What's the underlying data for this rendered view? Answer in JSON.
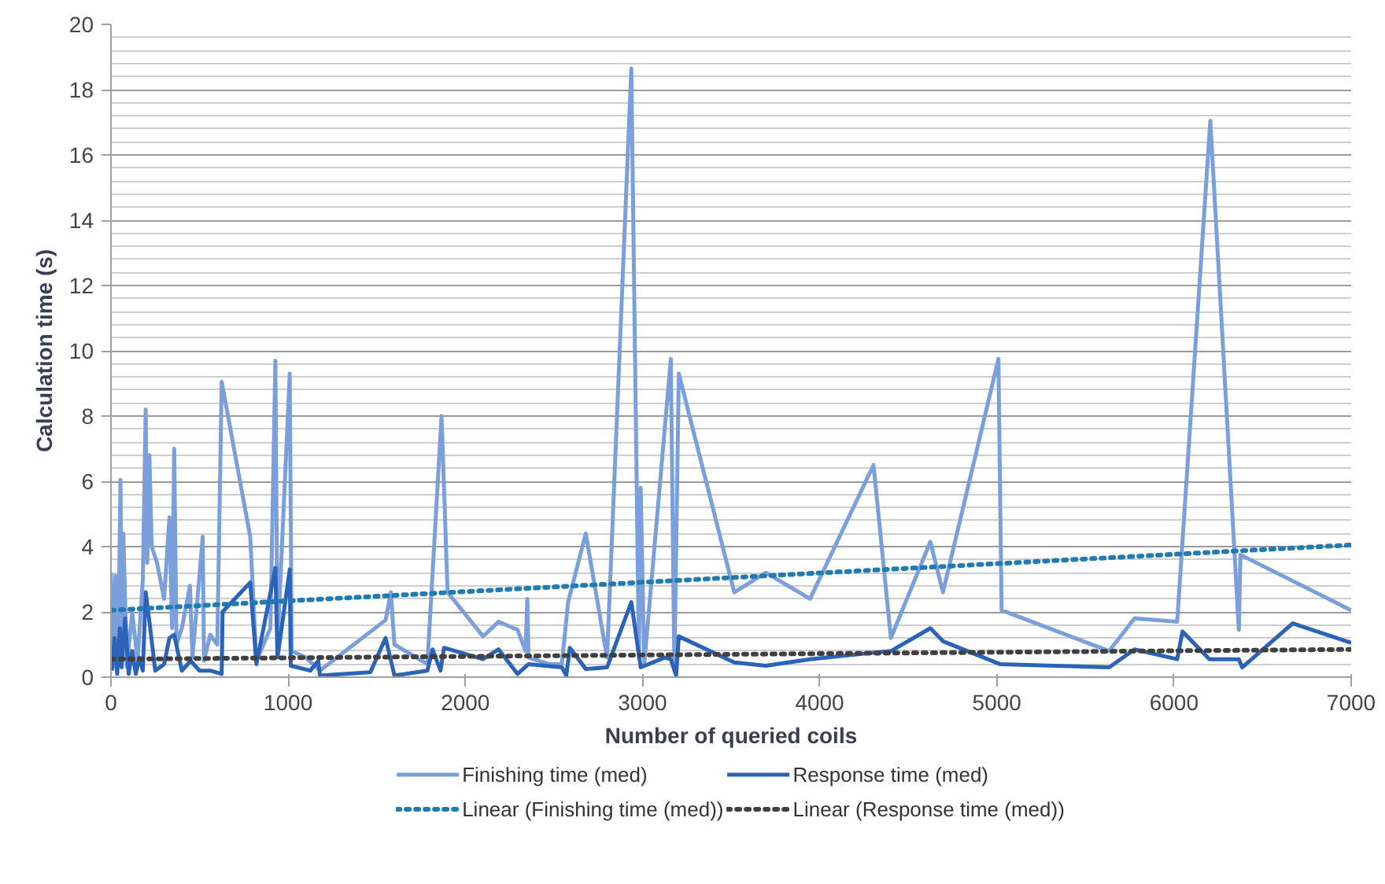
{
  "chart_data": {
    "type": "line",
    "xlabel": "Number of queried coils",
    "ylabel": "Calculation time (s)",
    "xlim": [
      0,
      7000
    ],
    "xticks": [
      0,
      1000,
      2000,
      3000,
      4000,
      5000,
      6000,
      7000
    ],
    "ylim": [
      0,
      20
    ],
    "yticks": [
      0,
      2,
      4,
      6,
      8,
      10,
      12,
      14,
      16,
      18,
      20
    ],
    "grid": "y",
    "legend": "bottom",
    "line_style": "solid",
    "marker": "none",
    "series": [
      {
        "name": "Finishing time (med)",
        "color": "#7b9fdb",
        "x": [
          0,
          10,
          25,
          40,
          54,
          60,
          70,
          90,
          120,
          150,
          180,
          196,
          205,
          217,
          230,
          260,
          300,
          330,
          345,
          357,
          370,
          400,
          446,
          460,
          518,
          525,
          560,
          600,
          625,
          786,
          821,
          900,
          928,
          940,
          1009,
          1020,
          1100,
          1179,
          1550,
          1580,
          1600,
          1786,
          1866,
          1900,
          2100,
          2188,
          2295,
          2340,
          2350,
          2357,
          2473,
          2545,
          2580,
          2680,
          2800,
          2937,
          2980,
          2990,
          3010,
          3160,
          3180,
          3205,
          3518,
          3696,
          3946,
          4304,
          4402,
          4625,
          4696,
          5009,
          5027,
          5634,
          5777,
          6018,
          6205,
          6366,
          6375,
          7000
        ],
        "values": [
          3.2,
          0.3,
          3.1,
          0.5,
          6.05,
          1.0,
          4.4,
          0.3,
          2.0,
          0.5,
          3.0,
          8.2,
          3.5,
          6.8,
          4.0,
          3.5,
          2.4,
          4.9,
          1.5,
          7.0,
          1.0,
          1.5,
          2.8,
          0.6,
          4.3,
          0.5,
          1.3,
          1.0,
          9.05,
          4.3,
          0.5,
          1.5,
          9.7,
          1.0,
          9.3,
          0.8,
          0.6,
          0.2,
          1.75,
          2.6,
          1.0,
          0.4,
          8.0,
          2.6,
          1.25,
          1.7,
          1.45,
          0.8,
          2.4,
          0.6,
          0.4,
          0.4,
          2.3,
          4.4,
          0.6,
          18.65,
          0.6,
          5.8,
          0.4,
          9.75,
          0.2,
          9.3,
          2.6,
          3.2,
          2.4,
          6.5,
          1.2,
          4.15,
          2.6,
          9.75,
          2.05,
          0.8,
          1.8,
          1.7,
          17.05,
          1.45,
          3.75,
          2.05
        ]
      },
      {
        "name": "Response time (med)",
        "color": "#2a63b8",
        "x": [
          5,
          20,
          35,
          50,
          60,
          80,
          100,
          120,
          140,
          160,
          180,
          196,
          217,
          250,
          300,
          330,
          357,
          400,
          450,
          500,
          560,
          625,
          630,
          786,
          821,
          928,
          940,
          1009,
          1015,
          1125,
          1170,
          1180,
          1464,
          1550,
          1600,
          1786,
          1815,
          1860,
          1880,
          2100,
          2188,
          2295,
          2357,
          2545,
          2570,
          2590,
          2680,
          2800,
          2937,
          2990,
          3125,
          3160,
          3190,
          3205,
          3518,
          3696,
          3946,
          4304,
          4402,
          4625,
          4696,
          5018,
          5634,
          5777,
          6018,
          6048,
          6200,
          6366,
          6385,
          6670,
          7000
        ],
        "values": [
          0.2,
          1.2,
          0.1,
          1.5,
          0.3,
          1.8,
          0.1,
          0.8,
          0.1,
          0.6,
          0.2,
          2.6,
          1.7,
          0.2,
          0.4,
          1.2,
          1.3,
          0.2,
          0.5,
          0.2,
          0.2,
          0.1,
          2.0,
          2.9,
          0.4,
          3.35,
          0.6,
          3.3,
          0.35,
          0.2,
          0.5,
          0.05,
          0.15,
          1.2,
          0.05,
          0.2,
          0.85,
          0.2,
          0.9,
          0.55,
          0.85,
          0.1,
          0.4,
          0.3,
          0.05,
          0.9,
          0.25,
          0.3,
          2.3,
          0.3,
          0.6,
          0.55,
          0.05,
          1.25,
          0.45,
          0.35,
          0.55,
          0.75,
          0.8,
          1.5,
          1.1,
          0.4,
          0.3,
          0.85,
          0.55,
          1.4,
          0.55,
          0.55,
          0.3,
          1.65,
          1.05
        ]
      },
      {
        "name": "Linear (Finishing time (med))",
        "color": "#1f7bb0",
        "line_style": "dotted",
        "x": [
          0,
          7000
        ],
        "values": [
          2.05,
          4.05
        ]
      },
      {
        "name": "Linear (Response time (med))",
        "color": "#404040",
        "line_style": "dotted",
        "x": [
          0,
          7000
        ],
        "values": [
          0.55,
          0.85
        ]
      }
    ]
  }
}
